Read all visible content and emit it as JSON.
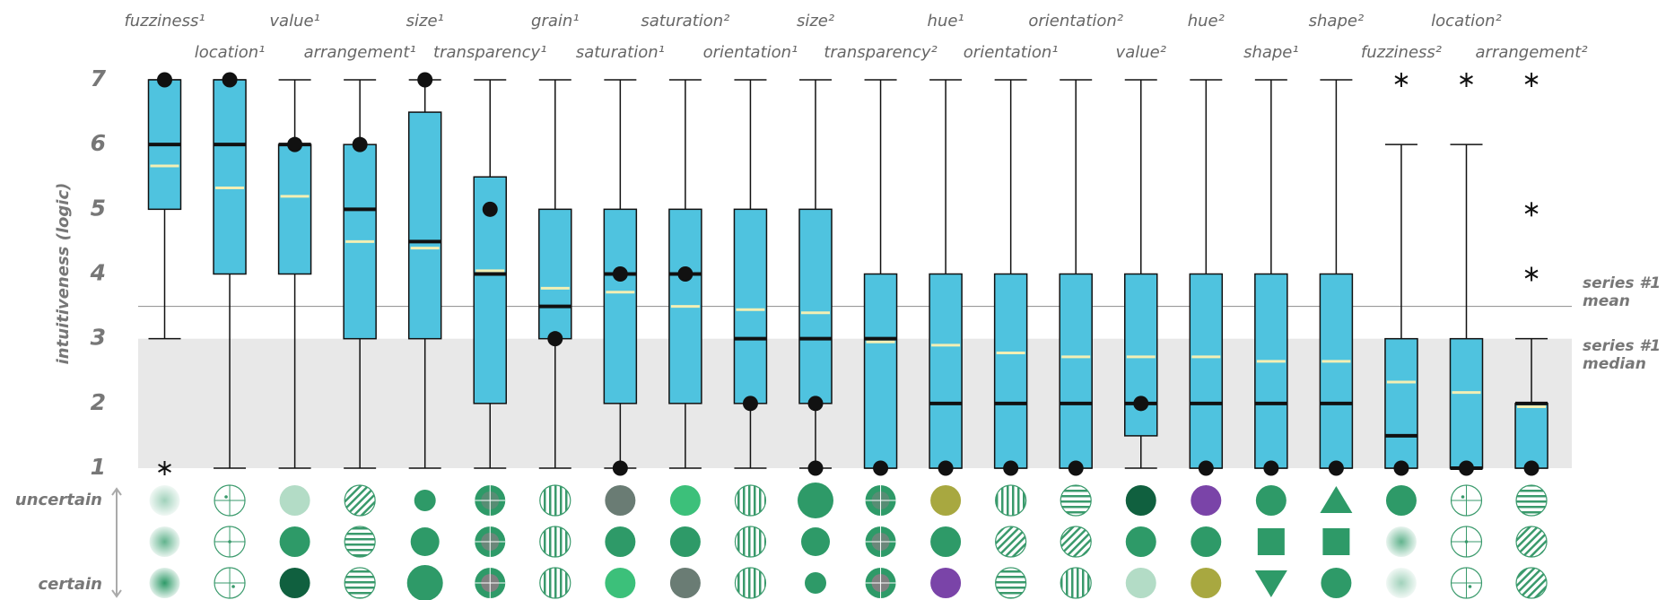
{
  "chart_data": {
    "type": "box",
    "ylabel": "intuitiveness (logic)",
    "ylim": [
      1,
      7
    ],
    "yticks": [
      1,
      2,
      3,
      4,
      5,
      6,
      7
    ],
    "row_labels": [
      "uncertain",
      "certain"
    ],
    "reference_line": {
      "value": 3.5,
      "label": "series #1 mean"
    },
    "shaded_band": {
      "range": [
        1,
        3
      ],
      "label": "series #1 median"
    },
    "box_color": "#4fc3df",
    "mean_color": "#f3efb4",
    "categories": [
      "fuzziness¹",
      "location¹",
      "value¹",
      "arrangement¹",
      "size¹",
      "transparency¹",
      "grain¹",
      "saturation¹",
      "saturation²",
      "orientation¹",
      "size²",
      "transparency²",
      "hue¹",
      "orientation¹",
      "orientation²",
      "value²",
      "hue²",
      "shape¹",
      "shape²",
      "fuzziness²",
      "location²",
      "arrangement²"
    ],
    "boxes": [
      {
        "whisker_low": 3,
        "q1": 5,
        "median": 6,
        "q3": 7,
        "whisker_high": 7,
        "mean": 5.67,
        "modes": [
          7
        ],
        "outliers": [
          1
        ]
      },
      {
        "whisker_low": 1,
        "q1": 4,
        "median": 6,
        "q3": 7,
        "whisker_high": 7,
        "mean": 5.33,
        "modes": [
          7
        ],
        "outliers": []
      },
      {
        "whisker_low": 1,
        "q1": 4,
        "median": 6,
        "q3": 6,
        "whisker_high": 7,
        "mean": 5.2,
        "modes": [
          6
        ],
        "outliers": []
      },
      {
        "whisker_low": 1,
        "q1": 3,
        "median": 5,
        "q3": 6,
        "whisker_high": 7,
        "mean": 4.5,
        "modes": [
          6
        ],
        "outliers": []
      },
      {
        "whisker_low": 1,
        "q1": 3,
        "median": 4.5,
        "q3": 6.5,
        "whisker_high": 7,
        "mean": 4.4,
        "modes": [
          7
        ],
        "outliers": []
      },
      {
        "whisker_low": 1,
        "q1": 2,
        "median": 4,
        "q3": 5.5,
        "whisker_high": 7,
        "mean": 4.05,
        "modes": [
          5
        ],
        "outliers": []
      },
      {
        "whisker_low": 1,
        "q1": 3,
        "median": 3.5,
        "q3": 5,
        "whisker_high": 7,
        "mean": 3.78,
        "modes": [
          3
        ],
        "outliers": []
      },
      {
        "whisker_low": 1,
        "q1": 2,
        "median": 4,
        "q3": 5,
        "whisker_high": 7,
        "mean": 3.72,
        "modes": [
          4,
          1
        ],
        "outliers": []
      },
      {
        "whisker_low": 1,
        "q1": 2,
        "median": 4,
        "q3": 5,
        "whisker_high": 7,
        "mean": 3.5,
        "modes": [
          4
        ],
        "outliers": []
      },
      {
        "whisker_low": 1,
        "q1": 2,
        "median": 3,
        "q3": 5,
        "whisker_high": 7,
        "mean": 3.45,
        "modes": [
          2
        ],
        "outliers": []
      },
      {
        "whisker_low": 1,
        "q1": 2,
        "median": 3,
        "q3": 5,
        "whisker_high": 7,
        "mean": 3.4,
        "modes": [
          2,
          1
        ],
        "outliers": []
      },
      {
        "whisker_low": 1,
        "q1": 1,
        "median": 3,
        "q3": 4,
        "whisker_high": 7,
        "mean": 2.95,
        "modes": [
          1
        ],
        "outliers": []
      },
      {
        "whisker_low": 1,
        "q1": 1,
        "median": 2,
        "q3": 4,
        "whisker_high": 7,
        "mean": 2.9,
        "modes": [
          1
        ],
        "outliers": []
      },
      {
        "whisker_low": 1,
        "q1": 1,
        "median": 2,
        "q3": 4,
        "whisker_high": 7,
        "mean": 2.78,
        "modes": [
          1
        ],
        "outliers": []
      },
      {
        "whisker_low": 1,
        "q1": 1,
        "median": 2,
        "q3": 4,
        "whisker_high": 7,
        "mean": 2.72,
        "modes": [
          1
        ],
        "outliers": []
      },
      {
        "whisker_low": 1,
        "q1": 1.5,
        "median": 2,
        "q3": 4,
        "whisker_high": 7,
        "mean": 2.72,
        "modes": [
          2
        ],
        "outliers": []
      },
      {
        "whisker_low": 1,
        "q1": 1,
        "median": 2,
        "q3": 4,
        "whisker_high": 7,
        "mean": 2.72,
        "modes": [
          1
        ],
        "outliers": []
      },
      {
        "whisker_low": 1,
        "q1": 1,
        "median": 2,
        "q3": 4,
        "whisker_high": 7,
        "mean": 2.65,
        "modes": [
          1
        ],
        "outliers": []
      },
      {
        "whisker_low": 1,
        "q1": 1,
        "median": 2,
        "q3": 4,
        "whisker_high": 7,
        "mean": 2.65,
        "modes": [
          1
        ],
        "outliers": []
      },
      {
        "whisker_low": 1,
        "q1": 1,
        "median": 1.5,
        "q3": 3,
        "whisker_high": 6,
        "mean": 2.33,
        "modes": [
          1
        ],
        "outliers": [
          7
        ]
      },
      {
        "whisker_low": 1,
        "q1": 1,
        "median": 1,
        "q3": 3,
        "whisker_high": 6,
        "mean": 2.17,
        "modes": [
          1
        ],
        "outliers": [
          7
        ]
      },
      {
        "whisker_low": 1,
        "q1": 1,
        "median": 2,
        "q3": 2,
        "whisker_high": 3,
        "mean": 1.95,
        "modes": [
          1
        ],
        "outliers": [
          7,
          5,
          4
        ]
      }
    ]
  }
}
